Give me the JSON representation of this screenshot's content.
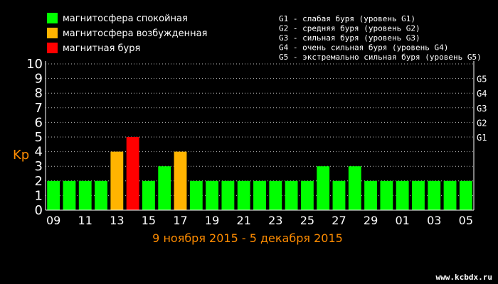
{
  "legend": [
    {
      "label": "магнитосфера спокойная",
      "color": "#00ff00"
    },
    {
      "label": "магнитосфера возбужденная",
      "color": "#ffb400"
    },
    {
      "label": "магнитная буря",
      "color": "#ff0000"
    }
  ],
  "storm_levels": [
    "G1 - слабая буря (уровень G1)",
    "G2 - средняя буря (уровень G2)",
    "G3 - сильная буря (уровень G3)",
    "G4 - очень сильная буря (уровень G4)",
    "G5 - экстремально сильная буря (уровень G5)"
  ],
  "watermark": "www.kcbdx.ru",
  "colors": {
    "quiet": "#00ff00",
    "active": "#ffb400",
    "storm": "#ff0000",
    "subtitle": "#ff8c00",
    "ylabel": "#ff8c00",
    "grid": "#bbbbbb"
  },
  "chart_data": {
    "type": "bar",
    "title": "",
    "subtitle": "9 ноября 2015 - 5 декабря 2015",
    "xlabel": "",
    "ylabel": "Kp",
    "ylim": [
      0,
      10
    ],
    "yticks": [
      0,
      1,
      2,
      3,
      4,
      5,
      6,
      7,
      8,
      9,
      10
    ],
    "right_ticks": [
      {
        "label": "G1",
        "y": 5
      },
      {
        "label": "G2",
        "y": 6
      },
      {
        "label": "G3",
        "y": 7
      },
      {
        "label": "G4",
        "y": 8
      },
      {
        "label": "G5",
        "y": 9
      }
    ],
    "grid": true,
    "xtick_labels": [
      "09",
      "11",
      "13",
      "15",
      "17",
      "19",
      "21",
      "23",
      "25",
      "27",
      "29",
      "01",
      "03",
      "05"
    ],
    "categories": [
      "09",
      "10",
      "11",
      "12",
      "13",
      "14",
      "15",
      "16",
      "17",
      "18",
      "19",
      "20",
      "21",
      "22",
      "23",
      "24",
      "25",
      "26",
      "27",
      "28",
      "29",
      "30",
      "01",
      "02",
      "03",
      "04",
      "05"
    ],
    "values": [
      2,
      2,
      2,
      2,
      4,
      5,
      2,
      3,
      4,
      2,
      2,
      2,
      2,
      2,
      2,
      2,
      2,
      3,
      2,
      3,
      2,
      2,
      2,
      2,
      2,
      2,
      2
    ],
    "status": [
      "quiet",
      "quiet",
      "quiet",
      "quiet",
      "active",
      "storm",
      "quiet",
      "quiet",
      "active",
      "quiet",
      "quiet",
      "quiet",
      "quiet",
      "quiet",
      "quiet",
      "quiet",
      "quiet",
      "quiet",
      "quiet",
      "quiet",
      "quiet",
      "quiet",
      "quiet",
      "quiet",
      "quiet",
      "quiet",
      "quiet"
    ]
  }
}
